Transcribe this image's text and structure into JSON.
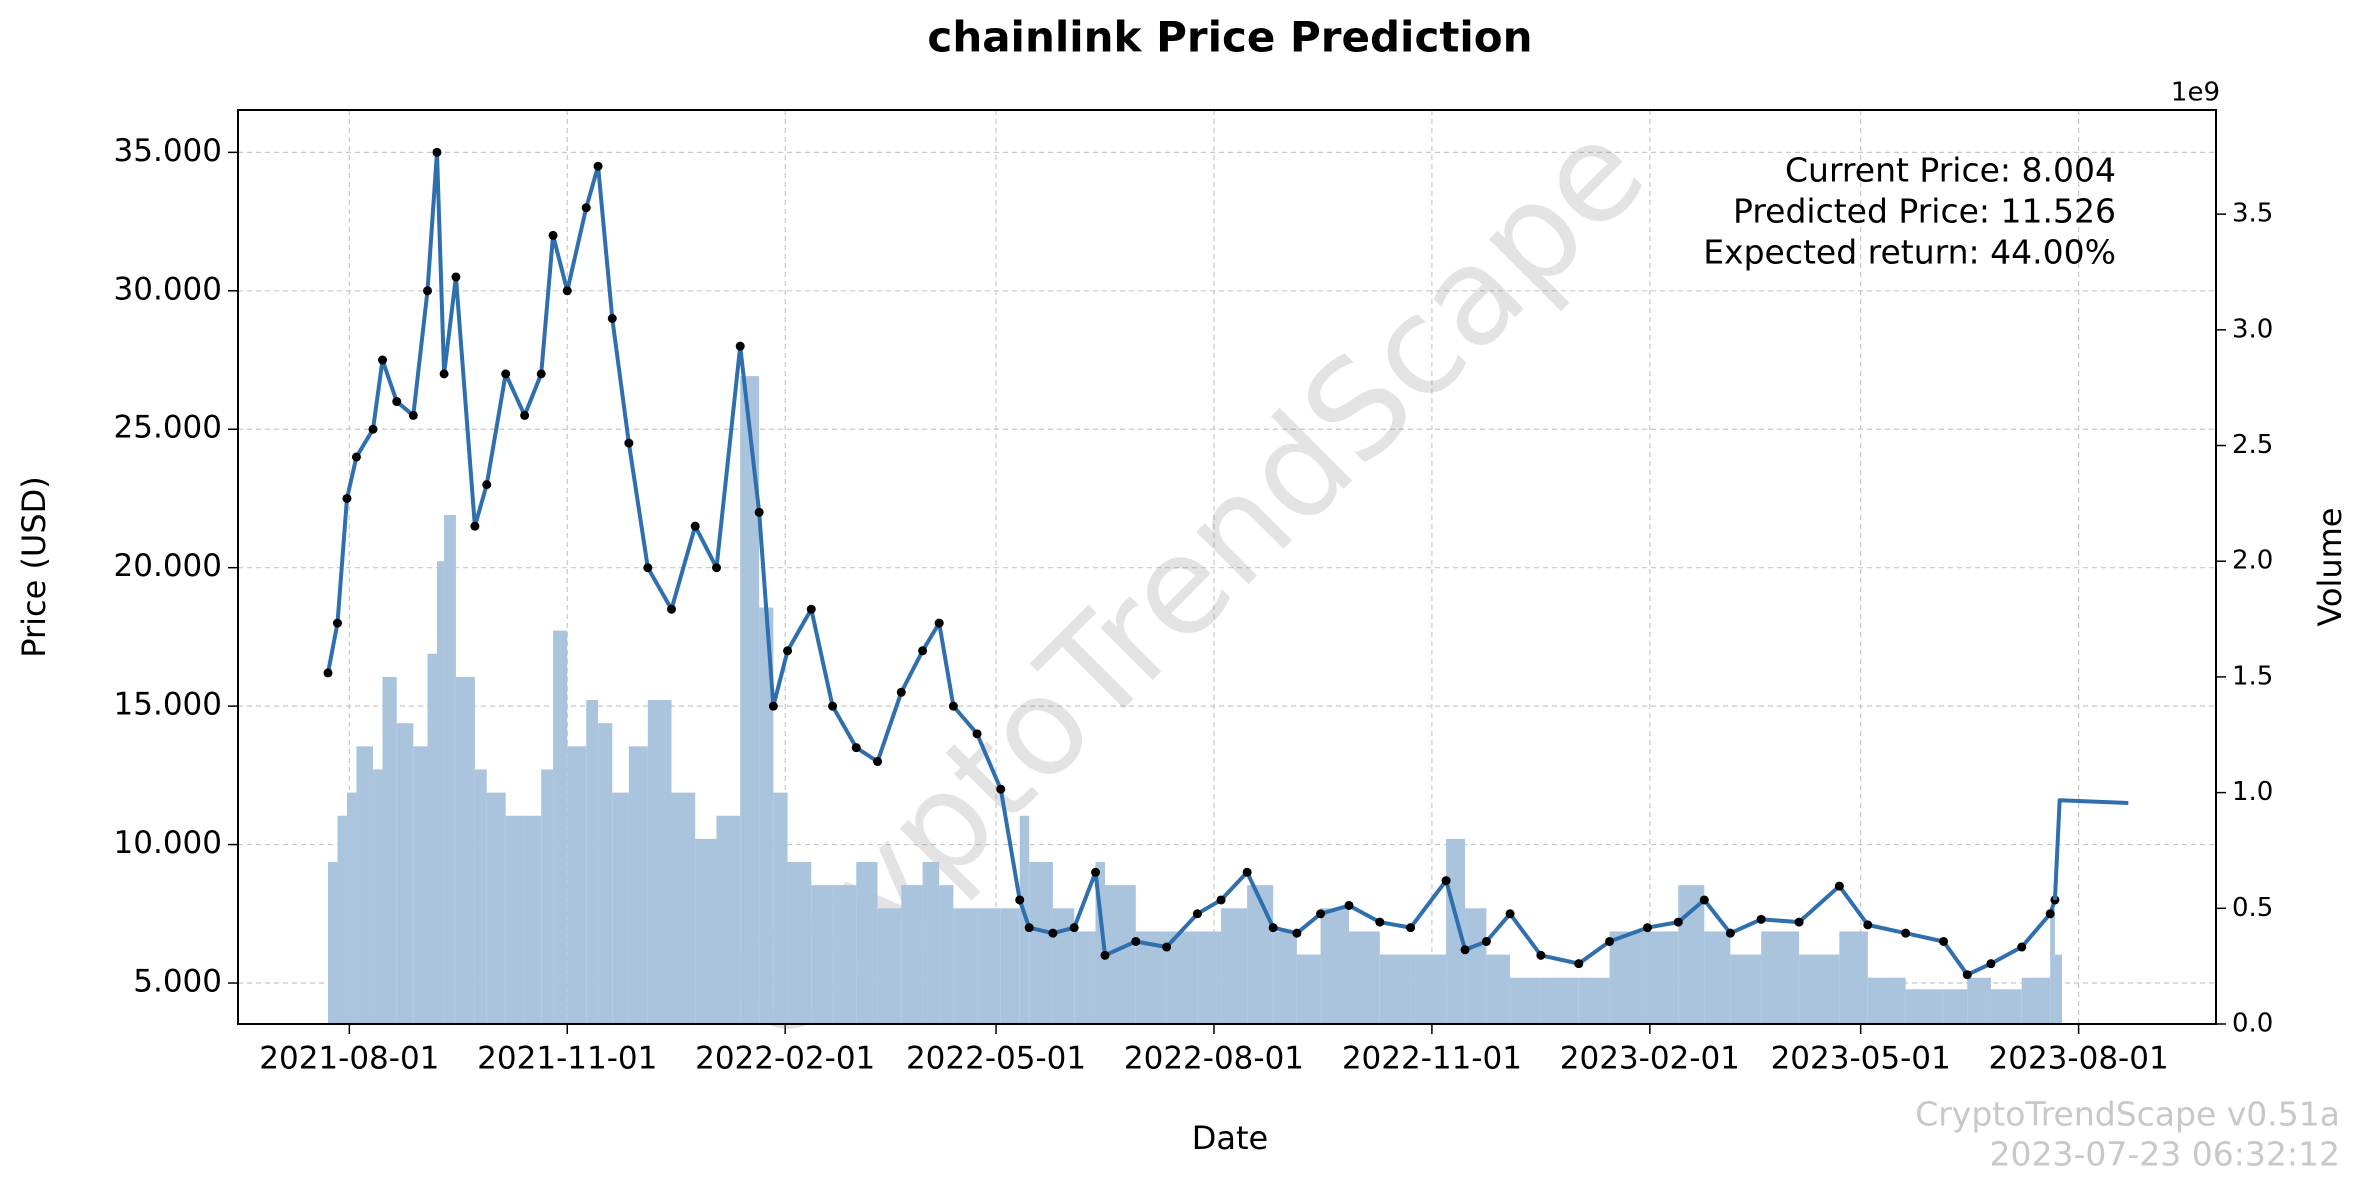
{
  "chart_data": {
    "type": "line",
    "title": "chainlink Price Prediction",
    "x_label": "Date",
    "y_label": "Price (USD)",
    "y2_label": "Volume",
    "y2_offset_label": "1e9",
    "annotations": [
      "Current Price: 8.004",
      "Predicted Price: 11.526",
      "Expected return: 44.00%"
    ],
    "watermark": "CryptoTrendScape",
    "footer": [
      "CryptoTrendScape v0.51a",
      "2023-07-23 06:32:12"
    ],
    "grid": true,
    "xlim": [
      "2021-06-15",
      "2023-09-28"
    ],
    "xticks": [
      "2021-08-01",
      "2021-11-01",
      "2022-02-01",
      "2022-05-01",
      "2022-08-01",
      "2022-11-01",
      "2023-02-01",
      "2023-05-01",
      "2023-08-01"
    ],
    "ylim": [
      3.52,
      36.53
    ],
    "yticks": [
      {
        "value": 5,
        "label": "5.000"
      },
      {
        "value": 10,
        "label": "10.000"
      },
      {
        "value": 15,
        "label": "15.000"
      },
      {
        "value": 20,
        "label": "20.000"
      },
      {
        "value": 25,
        "label": "25.000"
      },
      {
        "value": 30,
        "label": "30.000"
      },
      {
        "value": 35,
        "label": "35.000"
      }
    ],
    "y2lim": [
      0,
      3950000000
    ],
    "y2ticks": [
      {
        "value": 0,
        "label": "0.0"
      },
      {
        "value": 500000000,
        "label": "0.5"
      },
      {
        "value": 1000000000,
        "label": "1.0"
      },
      {
        "value": 1500000000,
        "label": "1.5"
      },
      {
        "value": 2000000000,
        "label": "2.0"
      },
      {
        "value": 2500000000,
        "label": "2.5"
      },
      {
        "value": 3000000000,
        "label": "3.0"
      },
      {
        "value": 3500000000,
        "label": "3.5"
      }
    ],
    "x": [
      "2021-07-23",
      "2021-07-27",
      "2021-07-31",
      "2021-08-04",
      "2021-08-11",
      "2021-08-15",
      "2021-08-21",
      "2021-08-28",
      "2021-09-03",
      "2021-09-07",
      "2021-09-10",
      "2021-09-15",
      "2021-09-23",
      "2021-09-28",
      "2021-10-06",
      "2021-10-14",
      "2021-10-21",
      "2021-10-26",
      "2021-11-01",
      "2021-11-09",
      "2021-11-14",
      "2021-11-20",
      "2021-11-27",
      "2021-12-05",
      "2021-12-15",
      "2021-12-25",
      "2022-01-03",
      "2022-01-13",
      "2022-01-21",
      "2022-01-27",
      "2022-02-02",
      "2022-02-12",
      "2022-02-21",
      "2022-03-03",
      "2022-03-12",
      "2022-03-22",
      "2022-03-31",
      "2022-04-07",
      "2022-04-13",
      "2022-04-23",
      "2022-05-03",
      "2022-05-11",
      "2022-05-15",
      "2022-05-25",
      "2022-06-03",
      "2022-06-12",
      "2022-06-16",
      "2022-06-29",
      "2022-07-12",
      "2022-07-25",
      "2022-08-04",
      "2022-08-15",
      "2022-08-26",
      "2022-09-05",
      "2022-09-15",
      "2022-09-27",
      "2022-10-10",
      "2022-10-23",
      "2022-11-07",
      "2022-11-15",
      "2022-11-24",
      "2022-12-04",
      "2022-12-17",
      "2023-01-02",
      "2023-01-15",
      "2023-01-31",
      "2023-02-13",
      "2023-02-24",
      "2023-03-07",
      "2023-03-20",
      "2023-04-05",
      "2023-04-22",
      "2023-05-04",
      "2023-05-20",
      "2023-06-05",
      "2023-06-15",
      "2023-06-25",
      "2023-07-08",
      "2023-07-20",
      "2023-07-22"
    ],
    "series": [
      {
        "type": "bar",
        "axis": "y2",
        "color": "#a9c4dc",
        "values": [
          700000000.0,
          900000000.0,
          1000000000.0,
          1200000000.0,
          1100000000.0,
          1500000000.0,
          1300000000.0,
          1200000000.0,
          1600000000.0,
          2000000000.0,
          2200000000.0,
          1500000000.0,
          1100000000.0,
          1000000000.0,
          900000000.0,
          900000000.0,
          1100000000.0,
          1700000000.0,
          1200000000.0,
          1400000000.0,
          1300000000.0,
          1000000000.0,
          1200000000.0,
          1400000000.0,
          1000000000.0,
          800000000.0,
          900000000.0,
          2800000000.0,
          1800000000.0,
          1000000000.0,
          700000000.0,
          600000000.0,
          600000000.0,
          700000000.0,
          500000000.0,
          600000000.0,
          700000000.0,
          600000000.0,
          500000000.0,
          500000000.0,
          500000000.0,
          900000000.0,
          700000000.0,
          500000000.0,
          400000000.0,
          700000000.0,
          600000000.0,
          400000000.0,
          400000000.0,
          400000000.0,
          500000000.0,
          600000000.0,
          400000000.0,
          300000000.0,
          500000000.0,
          400000000.0,
          300000000.0,
          300000000.0,
          800000000.0,
          500000000.0,
          300000000.0,
          200000000.0,
          200000000.0,
          200000000.0,
          400000000.0,
          400000000.0,
          600000000.0,
          400000000.0,
          300000000.0,
          400000000.0,
          300000000.0,
          400000000.0,
          200000000.0,
          150000000.0,
          150000000.0,
          200000000.0,
          150000000.0,
          200000000.0,
          500000000.0,
          300000000.0
        ]
      },
      {
        "type": "line",
        "color": "#2f6fae",
        "marker": true,
        "values": [
          16.2,
          18,
          22.5,
          24,
          25,
          27.5,
          26,
          25.5,
          30,
          35,
          27,
          30.5,
          21.5,
          23,
          27,
          25.5,
          27,
          32,
          30,
          33,
          34.5,
          29,
          24.5,
          20,
          18.5,
          21.5,
          20,
          28,
          22,
          15,
          17,
          18.5,
          15,
          13.5,
          13,
          15.5,
          17,
          18,
          15,
          14,
          12,
          8,
          7,
          6.8,
          7,
          9,
          6,
          6.5,
          6.3,
          7.5,
          8,
          9,
          7,
          6.8,
          7.5,
          7.8,
          7.2,
          7,
          8.7,
          6.2,
          6.5,
          7.5,
          6,
          5.7,
          6.5,
          7,
          7.2,
          8,
          6.8,
          7.3,
          7.2,
          8.5,
          7.1,
          6.8,
          6.5,
          5.3,
          5.7,
          6.3,
          7.5,
          8.0
        ]
      },
      {
        "type": "line",
        "color": "#2f6fae",
        "marker": false,
        "x": [
          "2023-07-22",
          "2023-07-24",
          "2023-08-22"
        ],
        "values": [
          8.0,
          11.6,
          11.5
        ]
      }
    ]
  }
}
